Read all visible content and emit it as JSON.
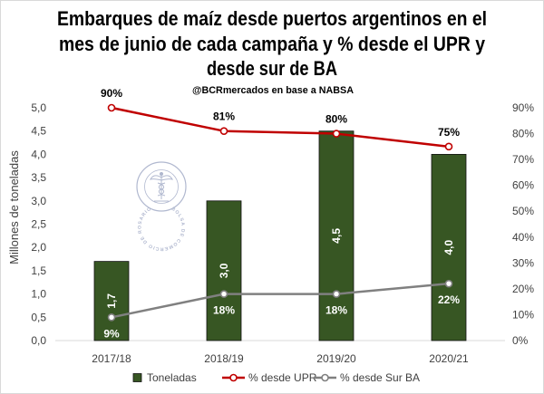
{
  "chart_data": {
    "type": "bar",
    "title": [
      "Embarques de maíz desde puertos argentinos en el",
      "mes de junio de cada campaña y % desde el UPR y",
      "desde sur de BA"
    ],
    "subtitle": "@BCRmercados en base a NABSA",
    "categories": [
      "2017/18",
      "2018/19",
      "2019/20",
      "2020/21"
    ],
    "ylabel": "Millones de toneladas",
    "ylim": [
      0,
      5
    ],
    "y2lim": [
      0,
      90
    ],
    "yticks": [
      {
        "value": 0,
        "label": "0,0"
      },
      {
        "value": 0.5,
        "label": "0,5"
      },
      {
        "value": 1,
        "label": "1,0"
      },
      {
        "value": 1.5,
        "label": "1,5"
      },
      {
        "value": 2,
        "label": "2,0"
      },
      {
        "value": 2.5,
        "label": "2,5"
      },
      {
        "value": 3,
        "label": "3,0"
      },
      {
        "value": 3.5,
        "label": "3,5"
      },
      {
        "value": 4,
        "label": "4,0"
      },
      {
        "value": 4.5,
        "label": "4,5"
      },
      {
        "value": 5,
        "label": "5,0"
      }
    ],
    "y2ticks": [
      {
        "value": 0,
        "label": "0%"
      },
      {
        "value": 10,
        "label": "10%"
      },
      {
        "value": 20,
        "label": "20%"
      },
      {
        "value": 30,
        "label": "30%"
      },
      {
        "value": 40,
        "label": "40%"
      },
      {
        "value": 50,
        "label": "50%"
      },
      {
        "value": 60,
        "label": "60%"
      },
      {
        "value": 70,
        "label": "70%"
      },
      {
        "value": 80,
        "label": "80%"
      },
      {
        "value": 90,
        "label": "90%"
      }
    ],
    "series": [
      {
        "name": "Toneladas",
        "type": "bar",
        "axis": "left",
        "color": "#375623",
        "values": [
          1.7,
          3.0,
          4.5,
          4.0
        ],
        "labels": [
          "1,7",
          "3,0",
          "4,5",
          "4,0"
        ]
      },
      {
        "name": "% desde UPR",
        "type": "line",
        "axis": "right",
        "color": "#C00000",
        "values": [
          90,
          81,
          80,
          75
        ],
        "labels": [
          "90%",
          "81%",
          "80%",
          "75%"
        ]
      },
      {
        "name": "% desde Sur BA",
        "type": "line",
        "axis": "right",
        "color": "#808080",
        "values": [
          9,
          18,
          18,
          22
        ],
        "labels": [
          "9%",
          "18%",
          "18%",
          "22%"
        ]
      }
    ],
    "grid": false,
    "legend": "bottom"
  },
  "watermark": {
    "text": "BOLSA DE COMERCIO DE ROSARIO",
    "color": "#7d89b0"
  }
}
